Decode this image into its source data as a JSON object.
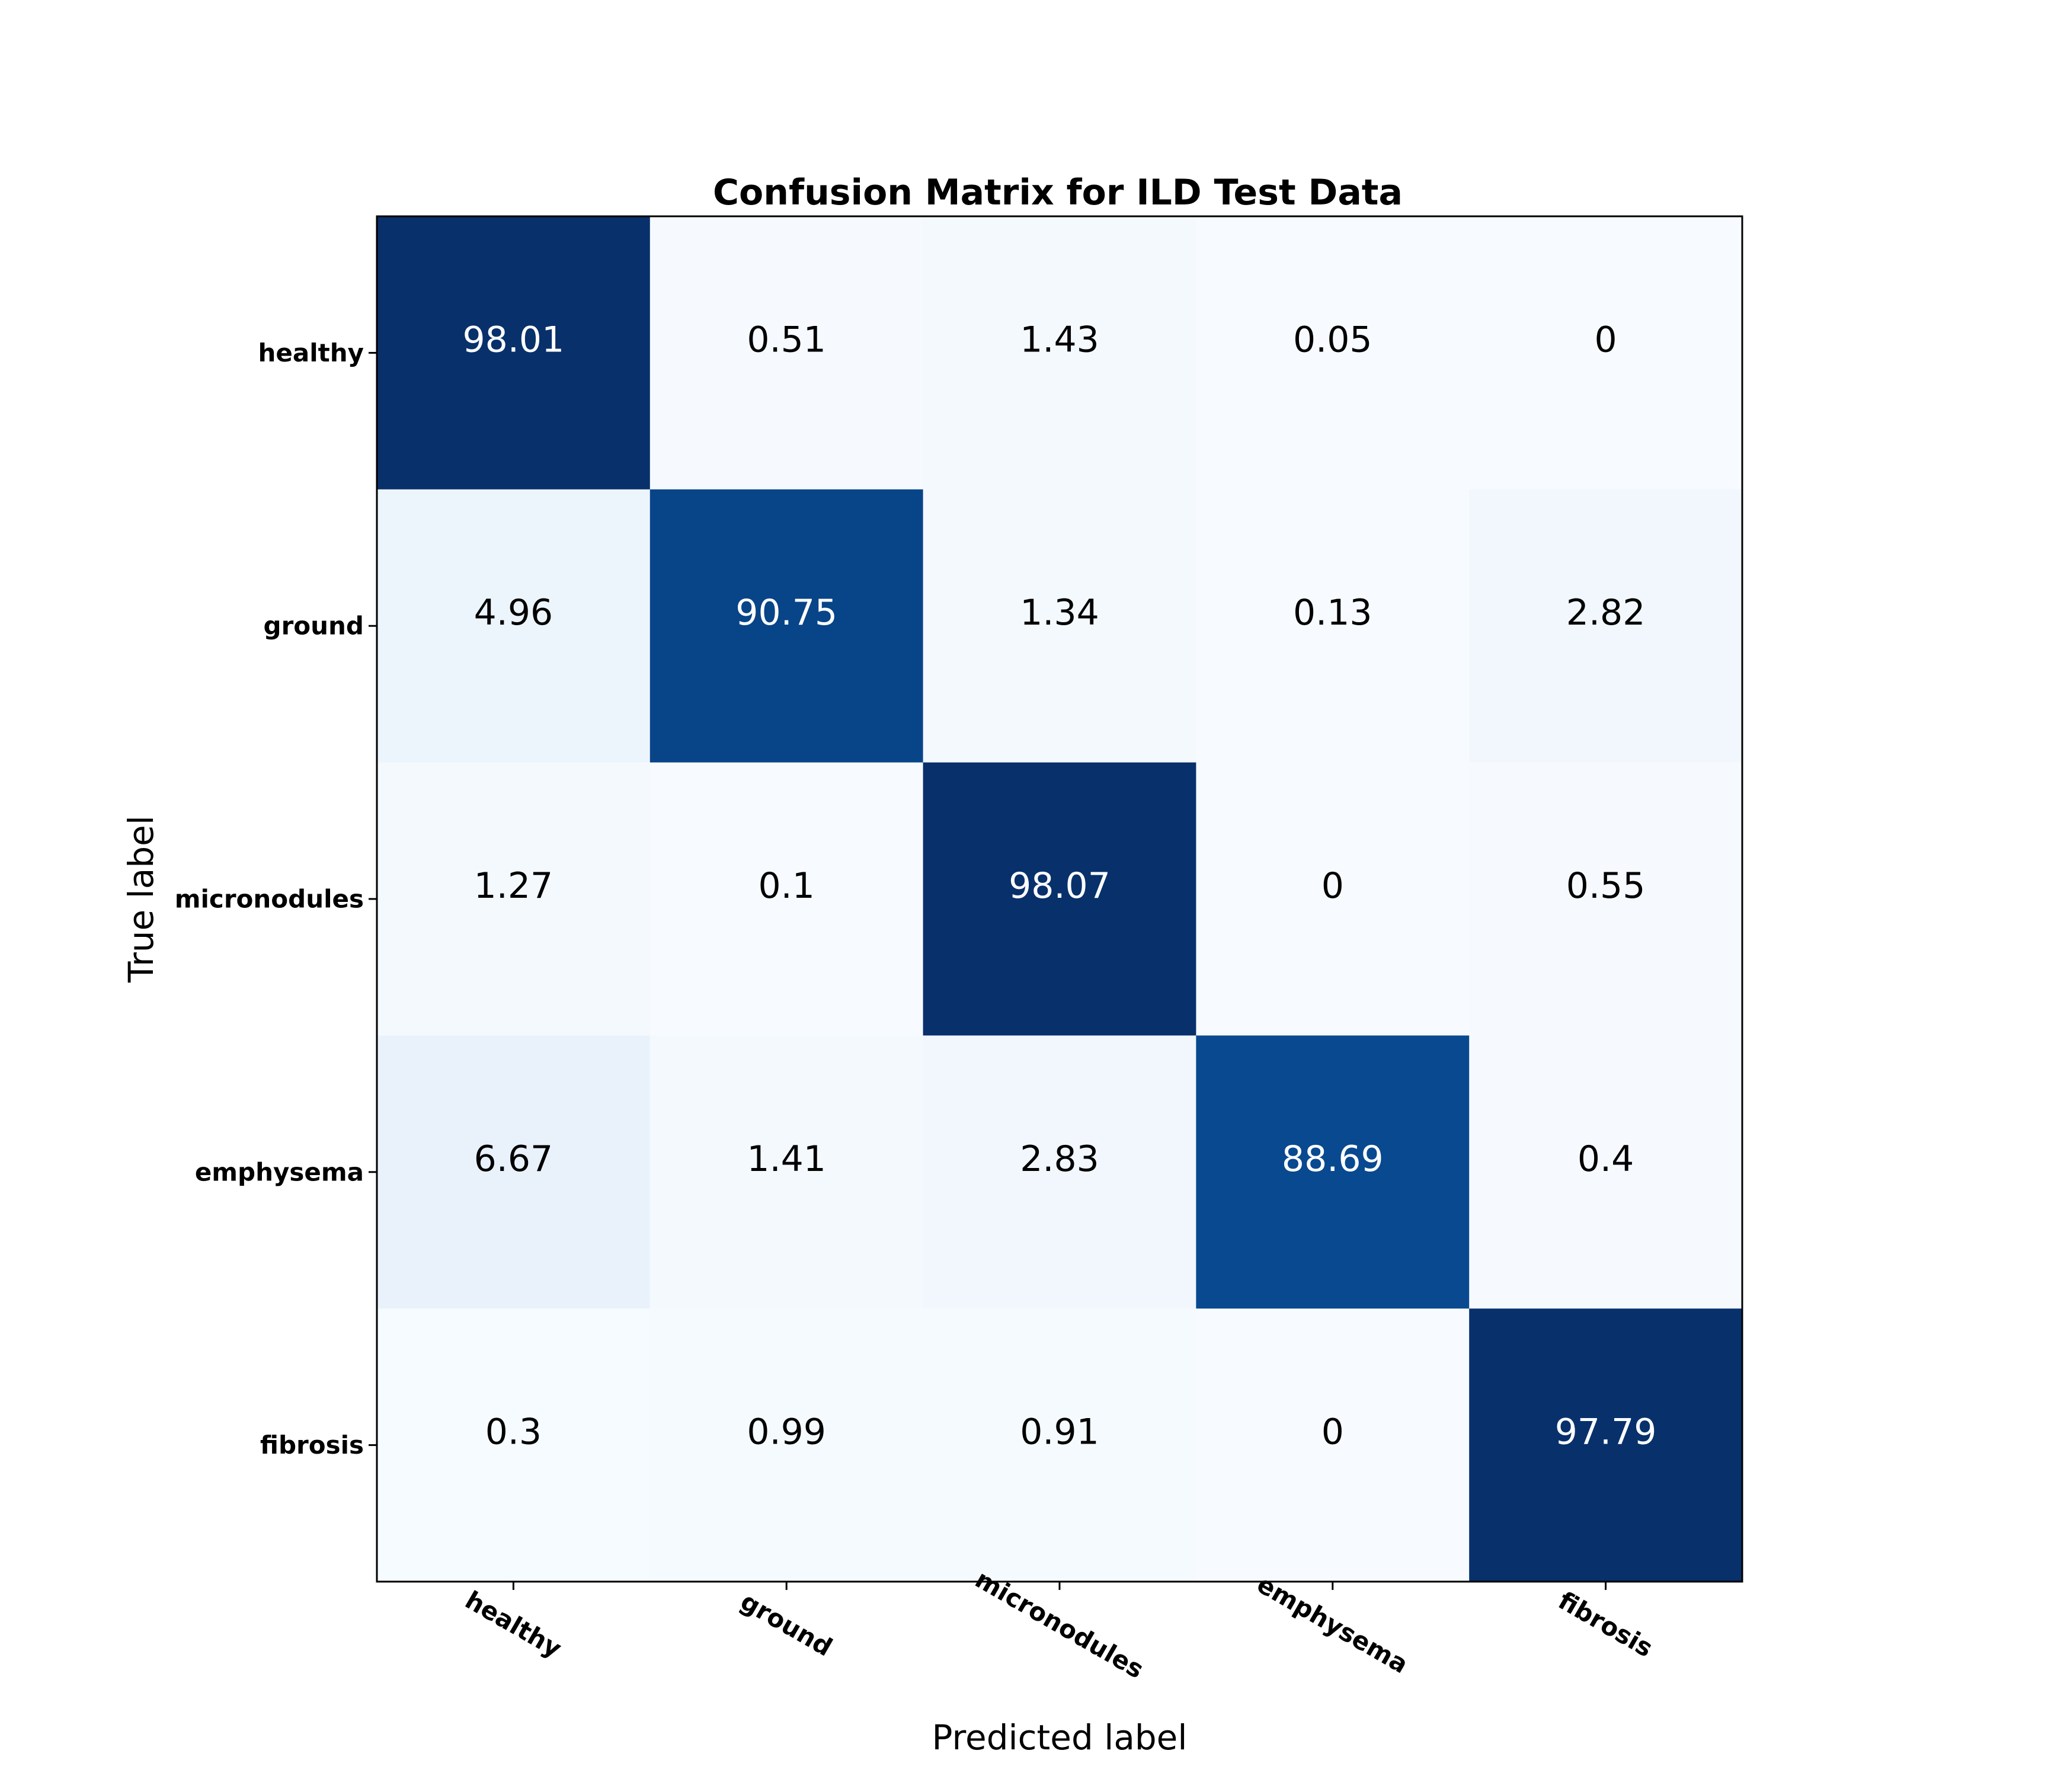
{
  "chart_data": {
    "type": "heatmap",
    "title": "Confusion Matrix for ILD Test Data",
    "xlabel": "Predicted label",
    "ylabel": "True label",
    "row_labels": [
      "healthy",
      "ground",
      "micronodules",
      "emphysema",
      "fibrosis"
    ],
    "col_labels": [
      "healthy",
      "ground",
      "micronodules",
      "emphysema",
      "fibrosis"
    ],
    "values": [
      [
        98.01,
        0.51,
        1.43,
        0.05,
        0
      ],
      [
        4.96,
        90.75,
        1.34,
        0.13,
        2.82
      ],
      [
        1.27,
        0.1,
        98.07,
        0,
        0.55
      ],
      [
        6.67,
        1.41,
        2.83,
        88.69,
        0.4
      ],
      [
        0.3,
        0.99,
        0.91,
        0,
        97.79
      ]
    ],
    "colormap": "Blues",
    "value_range": [
      0,
      98.07
    ],
    "legend": "none",
    "grid": false
  }
}
